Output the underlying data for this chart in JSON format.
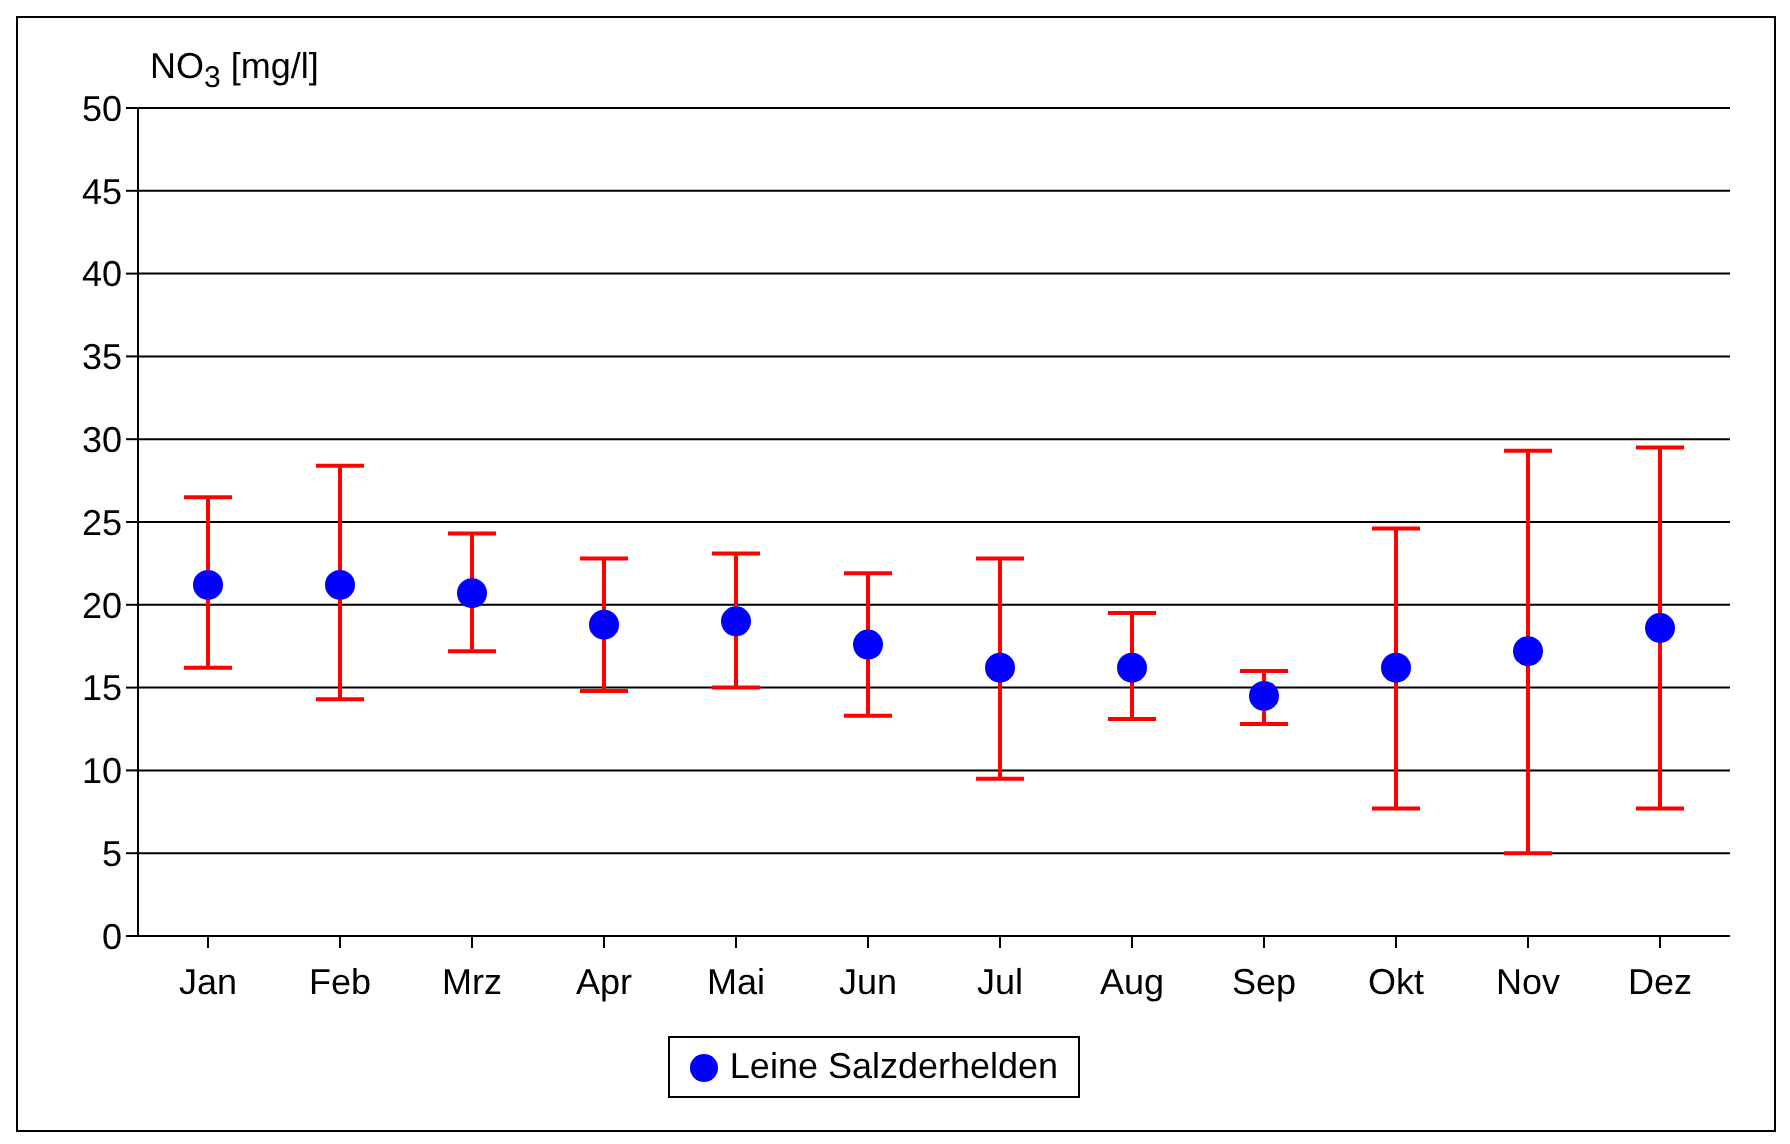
{
  "chart_data": {
    "type": "scatter",
    "ylabel": "NO$_{3}$ [mg/l]",
    "categories": [
      "Jan",
      "Feb",
      "Mrz",
      "Apr",
      "Mai",
      "Jun",
      "Jul",
      "Aug",
      "Sep",
      "Okt",
      "Nov",
      "Dez"
    ],
    "series": [
      {
        "name": "Leine Salzderhelden",
        "color": "#0000ff",
        "values": [
          21.2,
          21.2,
          20.7,
          18.8,
          19.0,
          17.6,
          16.2,
          16.2,
          14.5,
          16.2,
          17.2,
          18.6
        ],
        "errors": [
          [
            16.2,
            26.5
          ],
          [
            14.3,
            28.4
          ],
          [
            17.2,
            24.3
          ],
          [
            14.8,
            22.8
          ],
          [
            15.0,
            23.1
          ],
          [
            13.3,
            21.9
          ],
          [
            9.5,
            22.8
          ],
          [
            13.1,
            19.5
          ],
          [
            12.8,
            16.0
          ],
          [
            7.7,
            24.6
          ],
          [
            5.0,
            29.3
          ],
          [
            7.7,
            29.5
          ]
        ]
      }
    ],
    "ylim": [
      0,
      50
    ],
    "yticks": [
      0,
      5,
      10,
      15,
      20,
      25,
      30,
      35,
      40,
      45,
      50
    ],
    "grid": "y",
    "legend": "bottom",
    "marker": "circle"
  }
}
